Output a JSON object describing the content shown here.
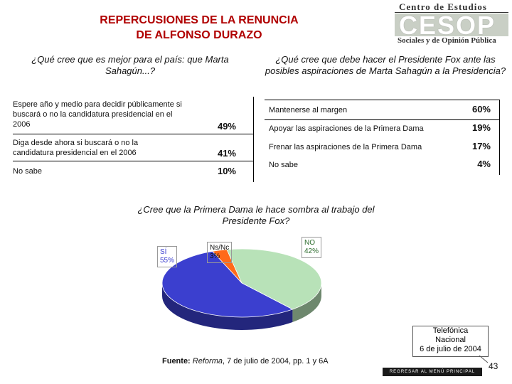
{
  "title_line1": "REPERCUSIONES DE LA RENUNCIA",
  "title_line2": "DE ALFONSO DURAZO",
  "logo": {
    "top_text": "Centro de Estudios",
    "mid_text": "CESOP",
    "bottom_text": "Sociales y de Opinión Pública"
  },
  "left_question": "¿Qué cree que es mejor para el país: que Marta Sahagún...?",
  "left_rows": [
    {
      "label": "Espere año y medio para decidir públicamente si buscará o no la candidatura presidencial en el 2006",
      "value": "49%"
    },
    {
      "label": "Diga desde ahora si buscará o no la candidatura presidencial en el 2006",
      "value": "41%"
    },
    {
      "label": "No sabe",
      "value": "10%"
    }
  ],
  "right_question": "¿Qué cree que debe hacer el Presidente Fox ante las posibles aspiraciones de Marta Sahagún a la Presidencia?",
  "right_rows": [
    {
      "label": "Mantenerse al margen",
      "value": "60%"
    },
    {
      "label": "Apoyar las aspiraciones de la Primera Dama",
      "value": "19%"
    },
    {
      "label": "Frenar las aspiraciones de la Primera Dama",
      "value": "17%"
    },
    {
      "label": "No sabe",
      "value": "4%"
    }
  ],
  "center_question": "¿Cree que la Primera Dama le hace sombra al trabajo del Presidente Fox?",
  "chart_data": {
    "type": "pie",
    "title": "",
    "slices": [
      {
        "label": "SÍ",
        "value": 55,
        "value_label": "55%",
        "color": "#3b3fcf"
      },
      {
        "label": "NO",
        "value": 42,
        "value_label": "42%",
        "color": "#b8e2b8"
      },
      {
        "label": "Ns/Nc",
        "value": 3,
        "value_label": "3%",
        "color": "#ff6a1a"
      }
    ]
  },
  "source": {
    "prefix": "Fuente:",
    "publication": "Reforma",
    "rest": ", 7 de julio de 2004, pp. 1 y 6A"
  },
  "callout": {
    "line1": "Telefónica",
    "line2": "Nacional",
    "line3": "6 de julio de 2004"
  },
  "menu_button": "REGRESAR AL MENÚ PRINCIPAL",
  "page_number": "43"
}
